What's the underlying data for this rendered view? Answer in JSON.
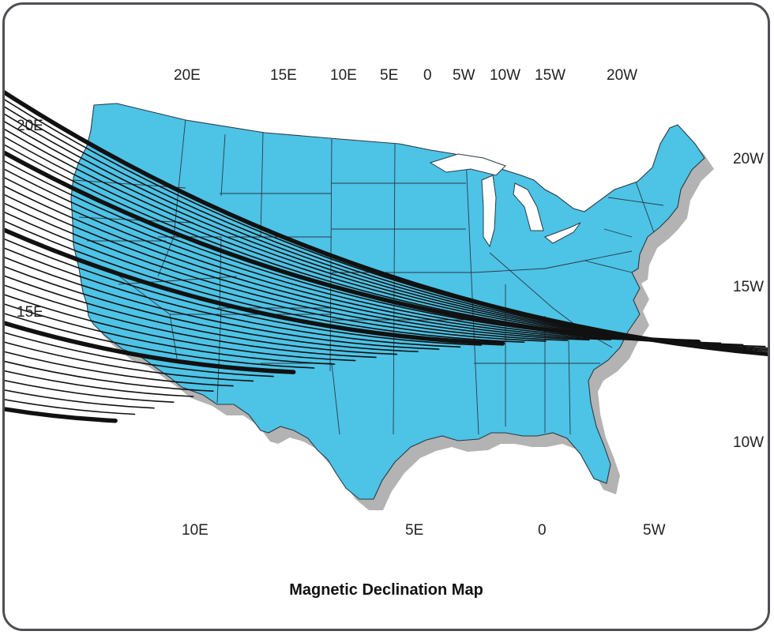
{
  "map": {
    "title": "Magnetic Declination Map",
    "colors": {
      "land": "#4dc3e6",
      "border": "#2b3a44",
      "shadow": "#9a9a9a",
      "isogonic": "#111111",
      "frame": "#4d4f53"
    },
    "top_labels": [
      "20E",
      "15E",
      "10E",
      "5E",
      "0",
      "5W",
      "10W",
      "15W",
      "20W"
    ],
    "left_labels": [
      "20E",
      "15E"
    ],
    "right_labels": [
      "20W",
      "15W",
      "10W"
    ],
    "bottom_labels": [
      "10E",
      "5E",
      "0",
      "5W"
    ]
  }
}
